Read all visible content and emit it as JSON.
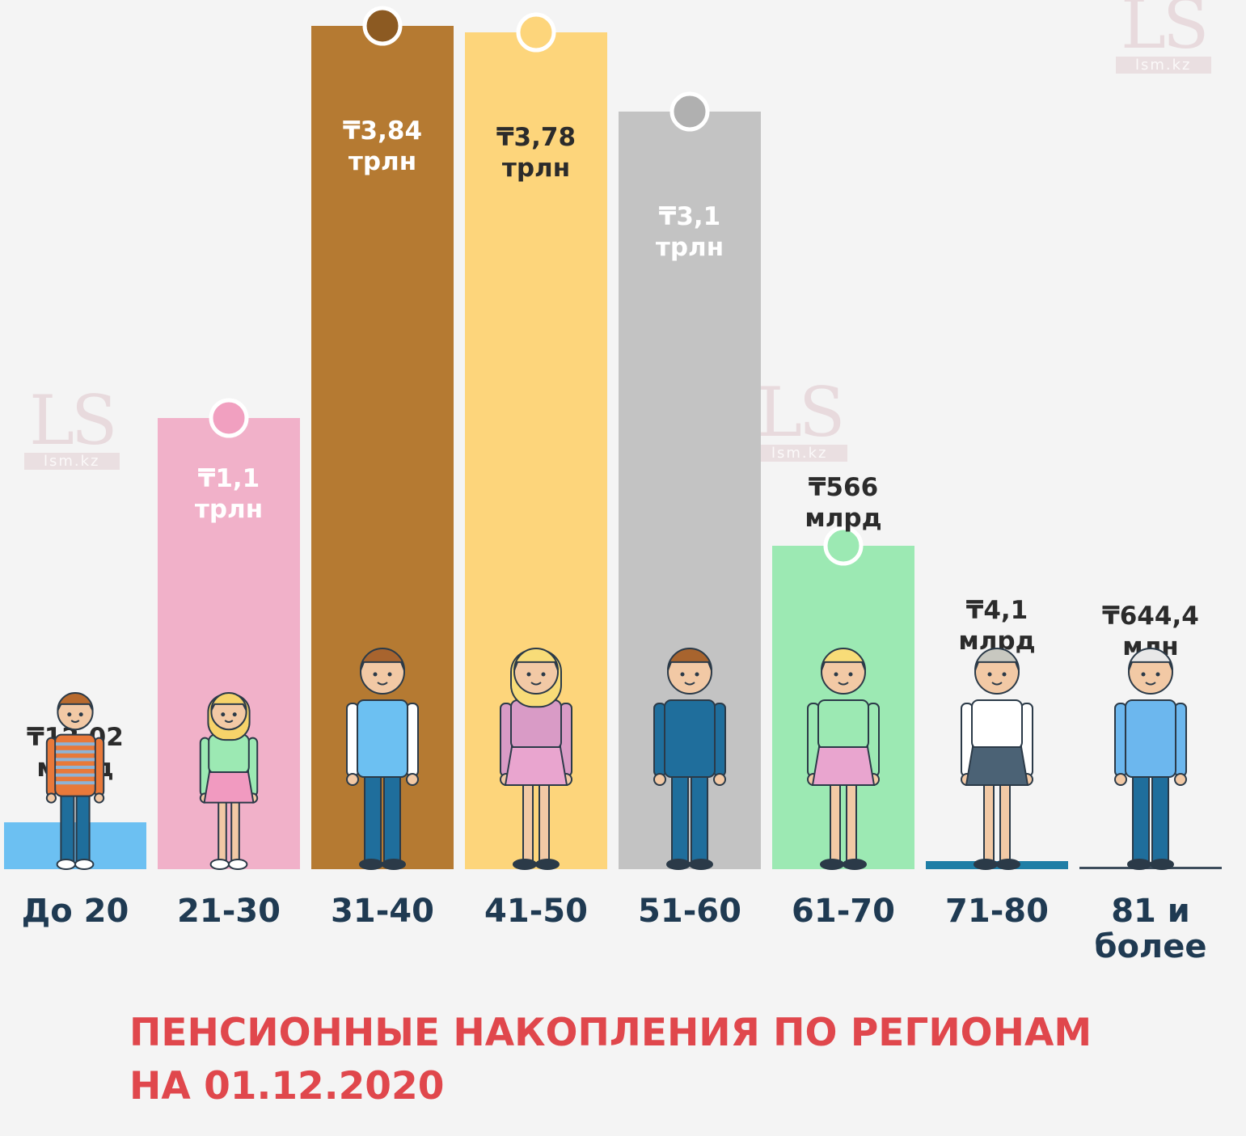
{
  "watermark": {
    "logo": "LS",
    "site": "lsm.kz"
  },
  "title_line1": "ПЕНСИОННЫЕ НАКОПЛЕНИЯ ПО РЕГИОНАМ",
  "title_line2": "НА 01.12.2020",
  "chart_data": {
    "type": "bar",
    "title": "ПЕНСИОННЫЕ НАКОПЛЕНИЯ ПО РЕГИОНАМ НА 01.12.2020",
    "xlabel": "",
    "ylabel": "",
    "unit": "млрд ₸",
    "grid": false,
    "categories": [
      "До 20",
      "21-30",
      "31-40",
      "41-50",
      "51-60",
      "61-70",
      "71-80",
      "81 и более"
    ],
    "category_lines": [
      [
        "До 20"
      ],
      [
        "21-30"
      ],
      [
        "31-40"
      ],
      [
        "41-50"
      ],
      [
        "51-60"
      ],
      [
        "61-70"
      ],
      [
        "71-80"
      ],
      [
        "81 и",
        "более"
      ]
    ],
    "values": [
      12.02,
      1100,
      3840,
      3780,
      3100,
      566,
      4.1,
      0.6444
    ],
    "data_labels": [
      [
        "₸12,02",
        "млрд"
      ],
      [
        "₸1,1",
        "трлн"
      ],
      [
        "₸3,84",
        "трлн"
      ],
      [
        "₸3,78",
        "трлн"
      ],
      [
        "₸3,1",
        "трлн"
      ],
      [
        "₸566",
        "млрд"
      ],
      [
        "₸4,1",
        "млрд"
      ],
      [
        "₸644,4",
        "млн"
      ]
    ],
    "bar_colors": [
      "#6cc0f2",
      "#f1b1c9",
      "#b57a32",
      "#fdd57b",
      "#c3c3c3",
      "#9ce9b3",
      "#1f7ea6",
      "#3d4d5c"
    ],
    "marker_colors": [
      "",
      "#f1a0c0",
      "#8c5a22",
      "#fdd57b",
      "#b0b0b0",
      "#9ce9b3",
      "",
      ""
    ],
    "label_colors": [
      "#2b2b2b",
      "#ffffff",
      "#ffffff",
      "#2b2b2b",
      "#ffffff",
      "#2b2b2b",
      "#2b2b2b",
      "#2b2b2b"
    ],
    "category_color": "#1f3a52"
  }
}
